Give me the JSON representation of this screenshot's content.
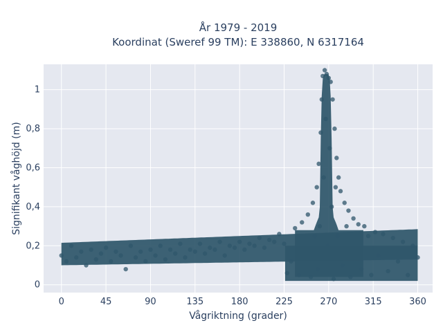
{
  "chart_data": {
    "type": "scatter",
    "title_line1": "År 1979 - 2019",
    "title_line2": "Koordinat (Sweref 99 TM): E 338860, N 6317164",
    "xlabel": "Vågriktning (grader)",
    "ylabel": "Signifikant våghöjd (m)",
    "xlim": [
      -18,
      375
    ],
    "ylim": [
      -0.04,
      1.13
    ],
    "xticks": [
      0,
      45,
      90,
      135,
      180,
      225,
      270,
      315,
      360
    ],
    "xtick_labels": [
      "0",
      "45",
      "90",
      "135",
      "180",
      "225",
      "270",
      "315",
      "360"
    ],
    "yticks": [
      0,
      0.2,
      0.4,
      0.6,
      0.8,
      1
    ],
    "ytick_labels": [
      "0",
      "0,2",
      "0,4",
      "0,6",
      "0,8",
      "1"
    ],
    "grid": true,
    "marker_color": "#2f566b",
    "plot_background": "#e5e8f0",
    "series": [
      {
        "points": [
          [
            0,
            0.15
          ],
          [
            5,
            0.12
          ],
          [
            10,
            0.2
          ],
          [
            15,
            0.14
          ],
          [
            20,
            0.17
          ],
          [
            25,
            0.1
          ],
          [
            30,
            0.18
          ],
          [
            35,
            0.13
          ],
          [
            40,
            0.16
          ],
          [
            45,
            0.19
          ],
          [
            50,
            0.12
          ],
          [
            55,
            0.17
          ],
          [
            60,
            0.15
          ],
          [
            65,
            0.08
          ],
          [
            70,
            0.2
          ],
          [
            75,
            0.14
          ],
          [
            80,
            0.17
          ],
          [
            85,
            0.12
          ],
          [
            90,
            0.18
          ],
          [
            95,
            0.15
          ],
          [
            100,
            0.2
          ],
          [
            105,
            0.13
          ],
          [
            110,
            0.18
          ],
          [
            115,
            0.16
          ],
          [
            120,
            0.21
          ],
          [
            125,
            0.14
          ],
          [
            130,
            0.18
          ],
          [
            135,
            0.17
          ],
          [
            140,
            0.21
          ],
          [
            145,
            0.16
          ],
          [
            150,
            0.19
          ],
          [
            155,
            0.18
          ],
          [
            160,
            0.22
          ],
          [
            165,
            0.15
          ],
          [
            170,
            0.2
          ],
          [
            175,
            0.19
          ],
          [
            180,
            0.22
          ],
          [
            185,
            0.18
          ],
          [
            190,
            0.21
          ],
          [
            195,
            0.2
          ],
          [
            200,
            0.24
          ],
          [
            205,
            0.19
          ],
          [
            210,
            0.23
          ],
          [
            215,
            0.22
          ],
          [
            220,
            0.26
          ],
          [
            225,
            0.21
          ],
          [
            228,
            0.06
          ],
          [
            232,
            0.12
          ],
          [
            236,
            0.29
          ],
          [
            240,
            0.05
          ],
          [
            243,
            0.32
          ],
          [
            246,
            0.18
          ],
          [
            249,
            0.36
          ],
          [
            252,
            0.04
          ],
          [
            254,
            0.42
          ],
          [
            256,
            0.25
          ],
          [
            258,
            0.5
          ],
          [
            259,
            0.08
          ],
          [
            260,
            0.62
          ],
          [
            261,
            0.3
          ],
          [
            262,
            0.78
          ],
          [
            263,
            0.95
          ],
          [
            264,
            1.07
          ],
          [
            265,
            0.55
          ],
          [
            266,
            1.1
          ],
          [
            267,
            0.85
          ],
          [
            268,
            1.08
          ],
          [
            269,
            0.2
          ],
          [
            270,
            1.06
          ],
          [
            271,
            0.7
          ],
          [
            272,
            1.04
          ],
          [
            273,
            0.4
          ],
          [
            274,
            0.95
          ],
          [
            275,
            0.03
          ],
          [
            276,
            0.8
          ],
          [
            277,
            0.5
          ],
          [
            278,
            0.65
          ],
          [
            279,
            0.25
          ],
          [
            280,
            0.55
          ],
          [
            282,
            0.48
          ],
          [
            284,
            0.1
          ],
          [
            286,
            0.42
          ],
          [
            288,
            0.3
          ],
          [
            290,
            0.38
          ],
          [
            292,
            0.04
          ],
          [
            295,
            0.34
          ],
          [
            298,
            0.18
          ],
          [
            300,
            0.31
          ],
          [
            303,
            0.08
          ],
          [
            306,
            0.3
          ],
          [
            310,
            0.25
          ],
          [
            313,
            0.05
          ],
          [
            317,
            0.27
          ],
          [
            320,
            0.15
          ],
          [
            325,
            0.26
          ],
          [
            330,
            0.07
          ],
          [
            335,
            0.24
          ],
          [
            340,
            0.12
          ],
          [
            345,
            0.22
          ],
          [
            350,
            0.05
          ],
          [
            355,
            0.2
          ],
          [
            360,
            0.14
          ]
        ]
      }
    ]
  }
}
